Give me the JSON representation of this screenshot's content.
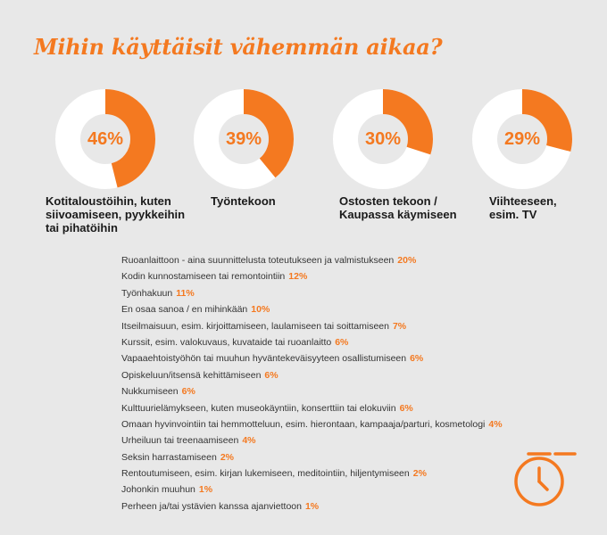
{
  "title": "Mihin käyttäisit vähemmän aikaa?",
  "colors": {
    "accent": "#f47920",
    "track": "#ffffff",
    "background": "#e8e8e8",
    "text": "#333333"
  },
  "icon": "stopwatch-icon",
  "chart_data": [
    {
      "type": "pie",
      "style": "donut",
      "series": [
        {
          "label": "Kotitaloustöihin, kuten siivoamiseen, pyykkeihin tai pihatöihin",
          "value": 46,
          "value_label": "46%",
          "label_lines": [
            "Kotitaloustöihin, kuten",
            "siivoamiseen, pyykkeihin",
            "tai pihatöihin"
          ]
        },
        {
          "label": "Työntekoon",
          "value": 39,
          "value_label": "39%",
          "label_lines": [
            "Työntekoon"
          ]
        },
        {
          "label": "Ostosten tekoon / Kaupassa käymiseen",
          "value": 30,
          "value_label": "30%",
          "label_lines": [
            "Ostosten tekoon /",
            "Kaupassa käymiseen"
          ]
        },
        {
          "label": "Viihteeseen, esim. TV",
          "value": 29,
          "value_label": "29%",
          "label_lines": [
            "Viihteeseen,",
            "esim. TV"
          ]
        }
      ]
    },
    {
      "type": "table",
      "rows": [
        {
          "label": "Ruoanlaittoon - aina suunnittelusta toteutukseen ja valmistukseen",
          "value": 20,
          "value_label": "20%"
        },
        {
          "label": "Kodin kunnostamiseen tai remontointiin",
          "value": 12,
          "value_label": "12%"
        },
        {
          "label": "Työnhakuun",
          "value": 11,
          "value_label": "11%"
        },
        {
          "label": "En osaa sanoa / en mihinkään",
          "value": 10,
          "value_label": "10%"
        },
        {
          "label": "Itseilmaisuun, esim. kirjoittamiseen, laulamiseen tai soittamiseen",
          "value": 7,
          "value_label": "7%"
        },
        {
          "label": "Kurssit, esim. valokuvaus, kuvataide tai ruoanlaitto",
          "value": 6,
          "value_label": "6%"
        },
        {
          "label": "Vapaaehtoistyöhön tai muuhun hyväntekeväisyyteen osallistumiseen",
          "value": 6,
          "value_label": "6%"
        },
        {
          "label": "Opiskeluun/itsensä kehittämiseen",
          "value": 6,
          "value_label": "6%"
        },
        {
          "label": "Nukkumiseen",
          "value": 6,
          "value_label": "6%"
        },
        {
          "label": "Kulttuurielämykseen, kuten museokäyntiin, konserttiin tai elokuviin",
          "value": 6,
          "value_label": "6%"
        },
        {
          "label": "Omaan hyvinvointiin tai hemmotteluun, esim. hierontaan, kampaaja/parturi, kosmetologi",
          "value": 4,
          "value_label": "4%"
        },
        {
          "label": "Urheiluun tai treenaamiseen",
          "value": 4,
          "value_label": "4%"
        },
        {
          "label": "Seksin harrastamiseen",
          "value": 2,
          "value_label": "2%"
        },
        {
          "label": "Rentoutumiseen, esim. kirjan lukemiseen, meditointiin, hiljentymiseen",
          "value": 2,
          "value_label": "2%"
        },
        {
          "label": "Johonkin muuhun",
          "value": 1,
          "value_label": "1%"
        },
        {
          "label": "Perheen ja/tai ystävien kanssa ajanviettoon",
          "value": 1,
          "value_label": "1%"
        }
      ]
    }
  ]
}
